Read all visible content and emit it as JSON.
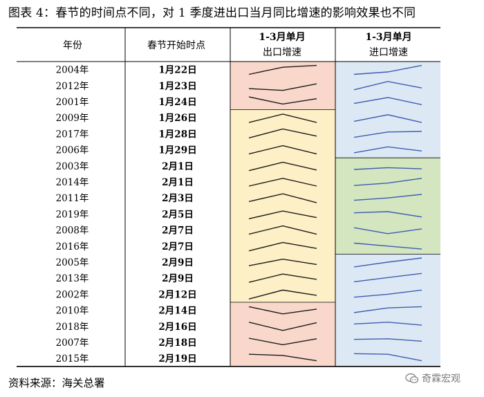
{
  "title": "图表 4：春节的时间点不同，对 1 季度进出口当月同比增速的影响效果也不同",
  "headers": {
    "year": "年份",
    "date": "春节开始时点",
    "export_line1": "1-3月单月",
    "export_line2": "出口增速",
    "import_line1": "1-3月单月",
    "import_line2": "进口增速"
  },
  "rows": [
    {
      "year": "2004年",
      "date": "1月22日"
    },
    {
      "year": "2012年",
      "date": "1月23日"
    },
    {
      "year": "2001年",
      "date": "1月24日"
    },
    {
      "year": "2009年",
      "date": "1月26日"
    },
    {
      "year": "2017年",
      "date": "1月28日"
    },
    {
      "year": "2006年",
      "date": "1月29日"
    },
    {
      "year": "2003年",
      "date": "2月1日"
    },
    {
      "year": "2014年",
      "date": "2月1日"
    },
    {
      "year": "2011年",
      "date": "2月3日"
    },
    {
      "year": "2019年",
      "date": "2月5日"
    },
    {
      "year": "2008年",
      "date": "2月7日"
    },
    {
      "year": "2016年",
      "date": "2月7日"
    },
    {
      "year": "2005年",
      "date": "2月9日"
    },
    {
      "year": "2013年",
      "date": "2月9日"
    },
    {
      "year": "2002年",
      "date": "2月12日"
    },
    {
      "year": "2010年",
      "date": "2月14日"
    },
    {
      "year": "2018年",
      "date": "2月16日"
    },
    {
      "year": "2007年",
      "date": "2月18日"
    },
    {
      "year": "2015年",
      "date": "2月19日"
    }
  ],
  "export_groups": [
    {
      "rows": [
        0,
        2
      ],
      "color": "#f9d8cb"
    },
    {
      "rows": [
        3,
        14
      ],
      "color": "#fdf0c6"
    },
    {
      "rows": [
        15,
        18
      ],
      "color": "#f9d8cb"
    }
  ],
  "import_groups": [
    {
      "rows": [
        0,
        5
      ],
      "color": "#dce9f5"
    },
    {
      "rows": [
        6,
        11
      ],
      "color": "#d3e6c0"
    },
    {
      "rows": [
        12,
        18
      ],
      "color": "#dce9f5"
    }
  ],
  "export_sparklines": [
    [
      0.1,
      0.7,
      0.85
    ],
    [
      0.25,
      0.1,
      0.65
    ],
    [
      0.9,
      0.3,
      0.75
    ],
    [
      0.1,
      0.8,
      0.1
    ],
    [
      0.15,
      0.9,
      0.3
    ],
    [
      0.15,
      0.85,
      0.15
    ],
    [
      0.1,
      0.8,
      0.15
    ],
    [
      0.15,
      0.8,
      0.15
    ],
    [
      0.2,
      0.85,
      0.1
    ],
    [
      0.1,
      0.75,
      0.2
    ],
    [
      0.15,
      0.85,
      0.15
    ],
    [
      0.1,
      0.8,
      0.3
    ],
    [
      0.2,
      0.75,
      0.3
    ],
    [
      0.15,
      0.85,
      0.4
    ],
    [
      0.1,
      0.85,
      0.4
    ],
    [
      0.8,
      0.2,
      0.6
    ],
    [
      0.85,
      0.15,
      0.8
    ],
    [
      0.85,
      0.3,
      0.8
    ],
    [
      0.85,
      0.75,
      0.3
    ]
  ],
  "import_sparklines": [
    [
      0.1,
      0.3,
      0.85
    ],
    [
      0.15,
      0.85,
      0.3
    ],
    [
      0.35,
      0.85,
      0.25
    ],
    [
      0.2,
      0.75,
      0.1
    ],
    [
      0.2,
      0.65,
      0.7
    ],
    [
      0.25,
      0.75,
      0.4
    ],
    [
      0.2,
      0.35,
      0.25
    ],
    [
      0.2,
      0.4,
      0.8
    ],
    [
      0.3,
      0.5,
      0.8
    ],
    [
      0.6,
      0.7,
      0.25
    ],
    [
      0.7,
      0.2,
      0.6
    ],
    [
      0.75,
      0.5,
      0.25
    ],
    [
      0.1,
      0.5,
      0.85
    ],
    [
      0.2,
      0.55,
      0.9
    ],
    [
      0.25,
      0.5,
      0.85
    ],
    [
      0.3,
      0.7,
      0.8
    ],
    [
      0.7,
      0.85,
      0.6
    ],
    [
      0.75,
      0.8,
      0.6
    ],
    [
      0.9,
      0.85,
      0.3
    ]
  ],
  "colors": {
    "export_line": "#1a1a1a",
    "import_line": "#3e5bb0",
    "grid": "#000000"
  },
  "source": "资料来源：海关总署",
  "watermark": {
    "icon": "chat-bubble-icon",
    "text": "奇霖宏观"
  }
}
